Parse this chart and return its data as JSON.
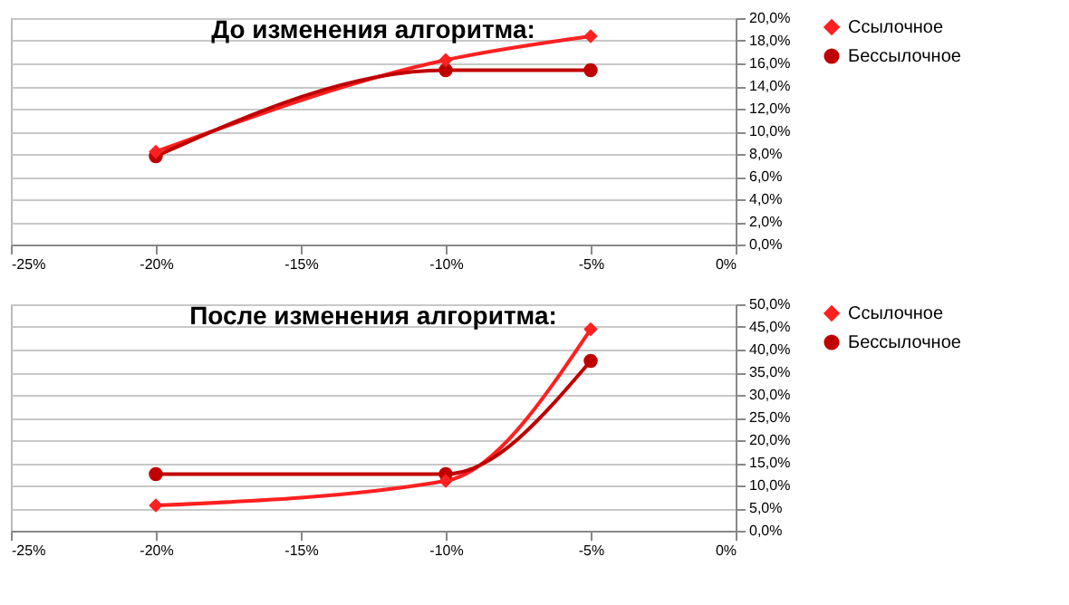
{
  "chart_data": [
    {
      "type": "line",
      "title": "До изменения алгоритма:",
      "x": [
        -20,
        -10,
        -5
      ],
      "series": [
        {
          "name": "Ссылочное",
          "color": "#ff2020",
          "marker": "diamond",
          "values": [
            8.2,
            16.3,
            18.4
          ]
        },
        {
          "name": "Бессылочное",
          "color": "#c00000",
          "marker": "circle",
          "values": [
            7.8,
            15.4,
            15.4
          ]
        }
      ],
      "xlim": [
        -25,
        0
      ],
      "xticks": [
        {
          "value": -25,
          "label": "-25%"
        },
        {
          "value": -20,
          "label": "-20%"
        },
        {
          "value": -15,
          "label": "-15%"
        },
        {
          "value": -10,
          "label": "-10%"
        },
        {
          "value": -5,
          "label": "-5%"
        },
        {
          "value": 0,
          "label": "0%"
        }
      ],
      "ylim": [
        0,
        20
      ],
      "yticks": [
        {
          "value": 0,
          "label": "0,0%"
        },
        {
          "value": 2,
          "label": "2,0%"
        },
        {
          "value": 4,
          "label": "4,0%"
        },
        {
          "value": 6,
          "label": "6,0%"
        },
        {
          "value": 8,
          "label": "8,0%"
        },
        {
          "value": 10,
          "label": "10,0%"
        },
        {
          "value": 12,
          "label": "12,0%"
        },
        {
          "value": 14,
          "label": "14,0%"
        },
        {
          "value": 16,
          "label": "16,0%"
        },
        {
          "value": 18,
          "label": "18,0%"
        },
        {
          "value": 20,
          "label": "20,0%"
        }
      ],
      "grid": "y",
      "legend": "right"
    },
    {
      "type": "line",
      "title": "После изменения алгоритма:",
      "x": [
        -20,
        -10,
        -5
      ],
      "series": [
        {
          "name": "Ссылочное",
          "color": "#ff2020",
          "marker": "diamond",
          "values": [
            5.6,
            11.0,
            44.5
          ]
        },
        {
          "name": "Бессылочное",
          "color": "#c00000",
          "marker": "circle",
          "values": [
            12.5,
            12.5,
            37.5
          ]
        }
      ],
      "xlim": [
        -25,
        0
      ],
      "xticks": [
        {
          "value": -25,
          "label": "-25%"
        },
        {
          "value": -20,
          "label": "-20%"
        },
        {
          "value": -15,
          "label": "-15%"
        },
        {
          "value": -10,
          "label": "-10%"
        },
        {
          "value": -5,
          "label": "-5%"
        },
        {
          "value": 0,
          "label": "0%"
        }
      ],
      "ylim": [
        0,
        50
      ],
      "yticks": [
        {
          "value": 0,
          "label": "0,0%"
        },
        {
          "value": 5,
          "label": "5,0%"
        },
        {
          "value": 10,
          "label": "10,0%"
        },
        {
          "value": 15,
          "label": "15,0%"
        },
        {
          "value": 20,
          "label": "20,0%"
        },
        {
          "value": 25,
          "label": "25,0%"
        },
        {
          "value": 30,
          "label": "30,0%"
        },
        {
          "value": 35,
          "label": "35,0%"
        },
        {
          "value": 40,
          "label": "40,0%"
        },
        {
          "value": 45,
          "label": "45,0%"
        },
        {
          "value": 50,
          "label": "50,0%"
        }
      ],
      "grid": "y",
      "legend": "right"
    }
  ]
}
